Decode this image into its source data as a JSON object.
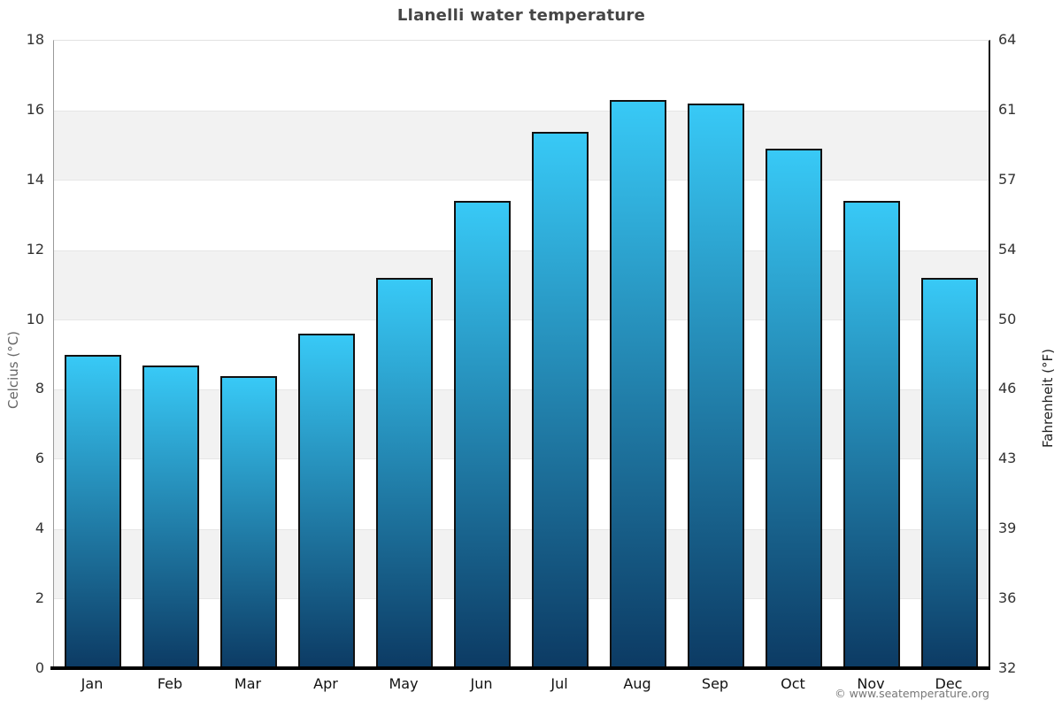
{
  "title": "Llanelli water temperature",
  "watermark": "© www.seatemperature.org",
  "chart_data": {
    "type": "bar",
    "title": "Llanelli water temperature",
    "categories": [
      "Jan",
      "Feb",
      "Mar",
      "Apr",
      "May",
      "Jun",
      "Jul",
      "Aug",
      "Sep",
      "Oct",
      "Nov",
      "Dec"
    ],
    "values": [
      9.0,
      8.7,
      8.4,
      9.6,
      11.2,
      13.4,
      15.4,
      16.3,
      16.2,
      14.9,
      13.4,
      11.2
    ],
    "series_name": "Water temperature (°C)",
    "ylabel_left": "Celcius (°C)",
    "ylabel_right": "Fahrenheit (°F)",
    "ylim": [
      0,
      18
    ],
    "yticks_celsius": [
      18,
      16,
      14,
      12,
      10,
      8,
      6,
      4,
      2,
      0
    ],
    "yticks_fahrenheit": [
      64,
      61,
      57,
      54,
      50,
      46,
      43,
      39,
      36,
      32
    ],
    "grid": "alternating horizontal gray bands",
    "legend": "none",
    "colors": {
      "bar_gradient_top": "#38c9f6",
      "bar_gradient_bottom": "#0c3a63",
      "bar_border": "#111111",
      "band": "#f2f2f2",
      "baseline": "#000000",
      "title_text": "#454545",
      "tick_text": "#333333"
    }
  }
}
